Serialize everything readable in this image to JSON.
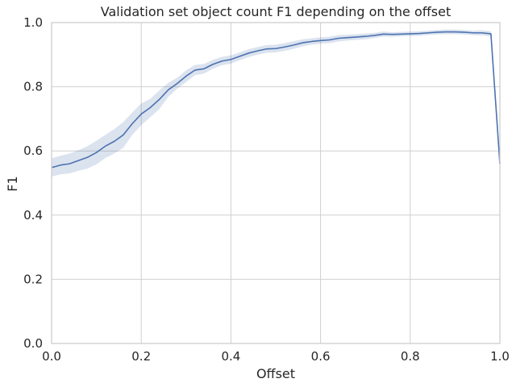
{
  "chart_data": {
    "type": "line",
    "title": "Validation set object count F1 depending on the offset",
    "xlabel": "Offset",
    "ylabel": "F1",
    "xlim": [
      0,
      1
    ],
    "ylim": [
      0,
      1
    ],
    "xticks": [
      "0.0",
      "0.2",
      "0.4",
      "0.6",
      "0.8",
      "1.0"
    ],
    "yticks": [
      "0.0",
      "0.2",
      "0.4",
      "0.6",
      "0.8",
      "1.0"
    ],
    "grid": true,
    "legend": "none",
    "series": [
      {
        "color": "#4c72b0",
        "band_color": "#4c72b0",
        "x": [
          0.0,
          0.02,
          0.04,
          0.06,
          0.08,
          0.1,
          0.12,
          0.14,
          0.16,
          0.18,
          0.2,
          0.22,
          0.24,
          0.26,
          0.28,
          0.3,
          0.32,
          0.34,
          0.36,
          0.38,
          0.4,
          0.42,
          0.44,
          0.46,
          0.48,
          0.5,
          0.52,
          0.54,
          0.56,
          0.58,
          0.6,
          0.62,
          0.64,
          0.66,
          0.68,
          0.7,
          0.72,
          0.74,
          0.76,
          0.78,
          0.8,
          0.82,
          0.84,
          0.86,
          0.88,
          0.9,
          0.92,
          0.94,
          0.96,
          0.98,
          1.0
        ],
        "y": [
          0.548,
          0.556,
          0.56,
          0.57,
          0.58,
          0.595,
          0.615,
          0.63,
          0.65,
          0.685,
          0.715,
          0.735,
          0.76,
          0.79,
          0.81,
          0.833,
          0.852,
          0.856,
          0.87,
          0.88,
          0.885,
          0.895,
          0.905,
          0.912,
          0.918,
          0.919,
          0.924,
          0.93,
          0.937,
          0.941,
          0.944,
          0.946,
          0.951,
          0.953,
          0.955,
          0.957,
          0.96,
          0.964,
          0.963,
          0.964,
          0.965,
          0.966,
          0.968,
          0.97,
          0.971,
          0.971,
          0.97,
          0.968,
          0.968,
          0.965,
          0.56
        ],
        "lower": [
          0.52,
          0.527,
          0.53,
          0.538,
          0.545,
          0.558,
          0.578,
          0.592,
          0.61,
          0.65,
          0.68,
          0.705,
          0.73,
          0.768,
          0.794,
          0.815,
          0.836,
          0.841,
          0.856,
          0.867,
          0.872,
          0.883,
          0.893,
          0.9,
          0.906,
          0.907,
          0.912,
          0.918,
          0.926,
          0.931,
          0.934,
          0.936,
          0.941,
          0.944,
          0.946,
          0.948,
          0.952,
          0.956,
          0.956,
          0.957,
          0.958,
          0.959,
          0.961,
          0.963,
          0.964,
          0.964,
          0.963,
          0.961,
          0.96,
          0.957,
          0.54
        ],
        "upper": [
          0.577,
          0.585,
          0.592,
          0.602,
          0.615,
          0.632,
          0.65,
          0.668,
          0.69,
          0.72,
          0.748,
          0.762,
          0.788,
          0.812,
          0.828,
          0.851,
          0.868,
          0.871,
          0.884,
          0.893,
          0.898,
          0.907,
          0.917,
          0.924,
          0.93,
          0.931,
          0.936,
          0.942,
          0.948,
          0.951,
          0.954,
          0.956,
          0.961,
          0.962,
          0.964,
          0.966,
          0.968,
          0.972,
          0.97,
          0.971,
          0.972,
          0.973,
          0.975,
          0.977,
          0.978,
          0.978,
          0.977,
          0.975,
          0.976,
          0.973,
          0.58
        ]
      }
    ]
  }
}
